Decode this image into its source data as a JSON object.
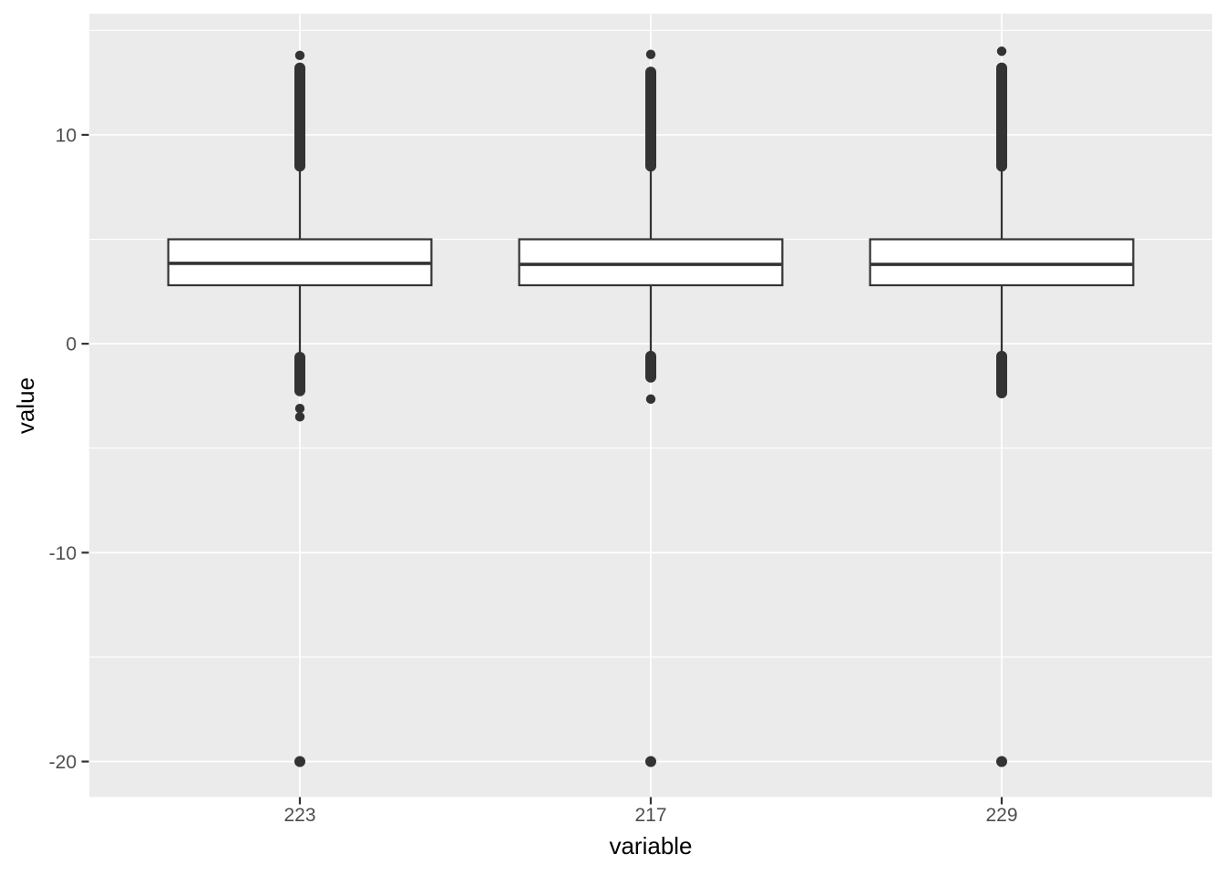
{
  "figure": {
    "background": "#FFFFFF"
  },
  "chart_data": {
    "type": "boxplot",
    "title": "",
    "xlabel": "variable",
    "ylabel": "value",
    "categories": [
      "223",
      "217",
      "229"
    ],
    "ylim": [
      -21.7,
      15.8
    ],
    "y_major_ticks": [
      10,
      0,
      -10,
      -20
    ],
    "y_minor_ticks": [
      15,
      5,
      -5,
      -15
    ],
    "x_expansion": 0.6,
    "box_width": 0.75,
    "grid": true,
    "legend_position": "none",
    "boxes": [
      {
        "category": "223",
        "q1": 2.8,
        "median": 3.85,
        "q3": 5.0,
        "whisker_low": -0.45,
        "whisker_high": 8.3,
        "outlier_bands_high": [
          [
            8.5,
            13.2
          ]
        ],
        "outlier_points_high": [
          13.8
        ],
        "outlier_bands_low": [
          [
            -0.65,
            -2.25
          ]
        ],
        "outlier_points_low": [
          -3.1,
          -3.5,
          -20.0
        ]
      },
      {
        "category": "217",
        "q1": 2.8,
        "median": 3.8,
        "q3": 5.0,
        "whisker_low": -0.35,
        "whisker_high": 8.3,
        "outlier_bands_high": [
          [
            8.5,
            13.0
          ]
        ],
        "outlier_points_high": [
          13.85
        ],
        "outlier_bands_low": [
          [
            -0.6,
            -1.6
          ]
        ],
        "outlier_points_low": [
          -2.65,
          -20.0
        ]
      },
      {
        "category": "229",
        "q1": 2.8,
        "median": 3.8,
        "q3": 5.0,
        "whisker_low": -0.35,
        "whisker_high": 8.3,
        "outlier_bands_high": [
          [
            8.5,
            13.2
          ]
        ],
        "outlier_points_high": [
          14.0
        ],
        "outlier_bands_low": [
          [
            -0.6,
            -2.35
          ]
        ],
        "outlier_points_low": [
          -20.0
        ]
      }
    ],
    "colors": {
      "panel_bg": "#EBEBEB",
      "grid": "#FFFFFF",
      "box_stroke": "#333333",
      "box_fill": "#FFFFFF",
      "outlier": "#333333",
      "tick_mark": "#333333",
      "tick_label": "#4D4D4D",
      "axis_title": "#000000"
    }
  }
}
